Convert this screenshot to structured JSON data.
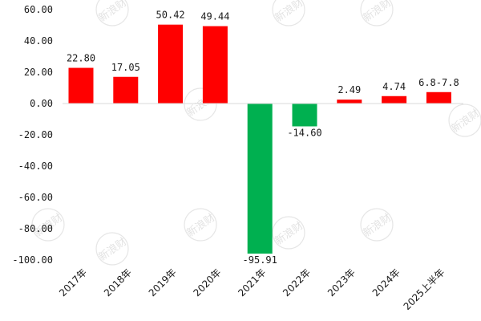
{
  "chart_data": {
    "type": "bar",
    "categories": [
      "2017年",
      "2018年",
      "2019年",
      "2020年",
      "2021年",
      "2022年",
      "2023年",
      "2024年",
      "2025上半年"
    ],
    "values": [
      22.8,
      17.05,
      50.42,
      49.44,
      -95.91,
      -14.6,
      2.49,
      4.74,
      7.3
    ],
    "data_labels": [
      "22.80",
      "17.05",
      "50.42",
      "49.44",
      "-95.91",
      "-14.60",
      "2.49",
      "4.74",
      "6.8-7.8"
    ],
    "ylim": [
      -100,
      60
    ],
    "y_ticks": [
      60,
      40,
      20,
      0,
      -20,
      -40,
      -60,
      -80,
      -100
    ],
    "y_tick_labels": [
      "60.00",
      "40.00",
      "20.00",
      "0.00",
      "-20.00",
      "-40.00",
      "-60.00",
      "-80.00",
      "-100.00"
    ],
    "grid": false,
    "legend": "none",
    "title": "",
    "xlabel": "",
    "ylabel": ""
  },
  "colors": {
    "positive": "#ff0000",
    "negative": "#00b050",
    "axis": "#d9d9d9",
    "text": "#1a1a1a"
  },
  "watermark": {
    "text": "新浪财经"
  }
}
